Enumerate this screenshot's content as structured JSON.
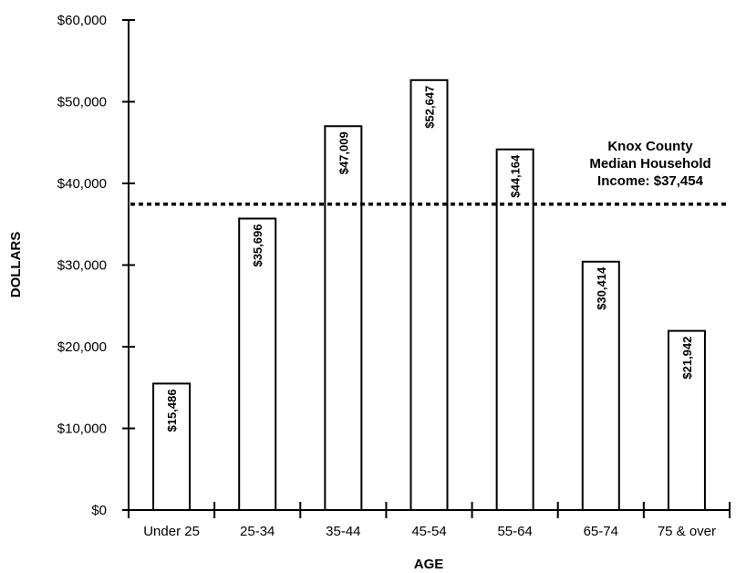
{
  "chart_data": {
    "type": "bar",
    "xlabel": "AGE",
    "ylabel": "DOLLARS",
    "ylim": [
      0,
      60000
    ],
    "y_ticks": [
      {
        "value": 0,
        "label": "$0"
      },
      {
        "value": 10000,
        "label": "$10,000"
      },
      {
        "value": 20000,
        "label": "$20,000"
      },
      {
        "value": 30000,
        "label": "$30,000"
      },
      {
        "value": 40000,
        "label": "$40,000"
      },
      {
        "value": 50000,
        "label": "$50,000"
      },
      {
        "value": 60000,
        "label": "$60,000"
      }
    ],
    "categories": [
      "Under 25",
      "25-34",
      "35-44",
      "45-54",
      "55-64",
      "65-74",
      "75 & over"
    ],
    "values": [
      15486,
      35696,
      47009,
      52647,
      44164,
      30414,
      21942
    ],
    "value_labels": [
      "$15,486",
      "$35,696",
      "$47,009",
      "$52,647",
      "$44,164",
      "$30,414",
      "$21,942"
    ],
    "bar_fill": "#ffffff",
    "bar_stroke": "#000000",
    "grid": false,
    "reference_line": {
      "value": 37454,
      "style": "dotted",
      "label_lines": [
        "Knox County",
        "Median Household",
        "Income: $37,454"
      ]
    }
  }
}
